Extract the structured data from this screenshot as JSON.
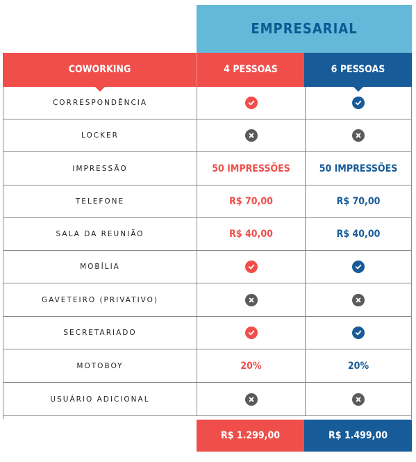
{
  "header": {
    "group_title": "EMPRESARIAL",
    "col_coworking": "COWORKING",
    "col_plan_a": "4 PESSOAS",
    "col_plan_b": "6 PESSOAS"
  },
  "colors": {
    "red": "#f04e4a",
    "blue": "#175b98",
    "light_blue": "#63b9d7",
    "gray_icon": "#5a5a5a"
  },
  "rows": [
    {
      "feature": "CORRESPONDÊNCIA",
      "plan_a": {
        "type": "icon",
        "icon": "check-icon"
      },
      "plan_b": {
        "type": "icon",
        "icon": "check-icon"
      }
    },
    {
      "feature": "LOCKER",
      "plan_a": {
        "type": "icon",
        "icon": "x-icon"
      },
      "plan_b": {
        "type": "icon",
        "icon": "x-icon"
      }
    },
    {
      "feature": "IMPRESSÃO",
      "plan_a": {
        "type": "text",
        "text": "50 IMPRESSÕES"
      },
      "plan_b": {
        "type": "text",
        "text": "50 IMPRESSÕES"
      }
    },
    {
      "feature": "TELEFONE",
      "plan_a": {
        "type": "text",
        "text": "R$ 70,00"
      },
      "plan_b": {
        "type": "text",
        "text": "R$ 70,00"
      }
    },
    {
      "feature": "SALA DA REUNIÃO",
      "plan_a": {
        "type": "text",
        "text": "R$ 40,00"
      },
      "plan_b": {
        "type": "text",
        "text": "R$ 40,00"
      }
    },
    {
      "feature": "MOBÍLIA",
      "plan_a": {
        "type": "icon",
        "icon": "check-icon"
      },
      "plan_b": {
        "type": "icon",
        "icon": "check-icon"
      }
    },
    {
      "feature": "GAVETEIRO (PRIVATIVO)",
      "plan_a": {
        "type": "icon",
        "icon": "x-icon"
      },
      "plan_b": {
        "type": "icon",
        "icon": "x-icon"
      }
    },
    {
      "feature": "SECRETARIADO",
      "plan_a": {
        "type": "icon",
        "icon": "check-icon"
      },
      "plan_b": {
        "type": "icon",
        "icon": "check-icon"
      }
    },
    {
      "feature": "MOTOBOY",
      "plan_a": {
        "type": "text",
        "text": "20%"
      },
      "plan_b": {
        "type": "text",
        "text": "20%"
      }
    },
    {
      "feature": "USUÁRIO ADICIONAL",
      "plan_a": {
        "type": "icon",
        "icon": "x-icon"
      },
      "plan_b": {
        "type": "icon",
        "icon": "x-icon"
      }
    }
  ],
  "prices": {
    "plan_a": "R$ 1.299,00",
    "plan_b": "R$ 1.499,00"
  }
}
